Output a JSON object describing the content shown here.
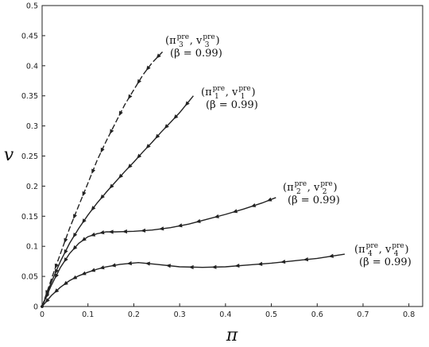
{
  "chart_data": {
    "type": "line",
    "xlabel": "π",
    "ylabel": "v",
    "xlim": [
      0,
      0.83
    ],
    "ylim": [
      0,
      0.5
    ],
    "xticks": [
      "0",
      "0.1",
      "0.2",
      "0.3",
      "0.4",
      "0.5",
      "0.6",
      "0.7",
      "0.8"
    ],
    "yticks": [
      "0",
      "0.05",
      "0.1",
      "0.15",
      "0.2",
      "0.25",
      "0.3",
      "0.35",
      "0.4",
      "0.45",
      "0.5"
    ],
    "grid": false,
    "series": [
      {
        "style": "dashed",
        "x": [
          0.0,
          0.02,
          0.04,
          0.06,
          0.08,
          0.1,
          0.12,
          0.14,
          0.16,
          0.18,
          0.2,
          0.22,
          0.24,
          0.265
        ],
        "y": [
          0.0,
          0.045,
          0.088,
          0.13,
          0.168,
          0.205,
          0.243,
          0.275,
          0.305,
          0.335,
          0.36,
          0.385,
          0.405,
          0.425
        ],
        "annotation": {
          "base": "(π",
          "sup1": "pre",
          "sub1": "3",
          "mid": ", v",
          "sup2": "pre",
          "sub2": "3",
          "end": ")",
          "line2": "(β = 0.99)"
        }
      },
      {
        "style": "solid",
        "x": [
          0.0,
          0.02,
          0.04,
          0.06,
          0.08,
          0.1,
          0.12,
          0.14,
          0.16,
          0.18,
          0.2,
          0.22,
          0.24,
          0.26,
          0.28,
          0.3,
          0.33
        ],
        "y": [
          0.0,
          0.04,
          0.075,
          0.105,
          0.13,
          0.152,
          0.172,
          0.19,
          0.207,
          0.224,
          0.24,
          0.257,
          0.273,
          0.29,
          0.306,
          0.322,
          0.35
        ],
        "annotation": {
          "base": "(π",
          "sup1": "pre",
          "sub1": "1",
          "mid": ", v",
          "sup2": "pre",
          "sub2": "1",
          "end": ")",
          "line2": "(β = 0.99)"
        }
      },
      {
        "style": "solid",
        "x": [
          0.0,
          0.02,
          0.04,
          0.06,
          0.08,
          0.1,
          0.12,
          0.14,
          0.16,
          0.2,
          0.24,
          0.28,
          0.32,
          0.36,
          0.4,
          0.44,
          0.48,
          0.51
        ],
        "y": [
          0.0,
          0.035,
          0.065,
          0.088,
          0.105,
          0.116,
          0.121,
          0.124,
          0.124,
          0.125,
          0.127,
          0.131,
          0.137,
          0.145,
          0.153,
          0.162,
          0.172,
          0.181
        ],
        "annotation": {
          "base": "(π",
          "sup1": "pre",
          "sub1": "2",
          "mid": ", v",
          "sup2": "pre",
          "sub2": "2",
          "end": ")",
          "line2": "(β = 0.99)"
        }
      },
      {
        "style": "solid",
        "x": [
          0.0,
          0.02,
          0.04,
          0.06,
          0.08,
          0.1,
          0.12,
          0.14,
          0.17,
          0.21,
          0.25,
          0.3,
          0.35,
          0.4,
          0.45,
          0.5,
          0.55,
          0.6,
          0.66
        ],
        "y": [
          0.0,
          0.018,
          0.032,
          0.043,
          0.051,
          0.057,
          0.062,
          0.066,
          0.07,
          0.073,
          0.07,
          0.066,
          0.065,
          0.066,
          0.069,
          0.072,
          0.076,
          0.08,
          0.087
        ],
        "annotation": {
          "base": "(π",
          "sup1": "pre",
          "sub1": "4",
          "mid": ", v",
          "sup2": "pre",
          "sub2": "4",
          "end": ")",
          "line2": "(β = 0.99)"
        }
      }
    ]
  }
}
